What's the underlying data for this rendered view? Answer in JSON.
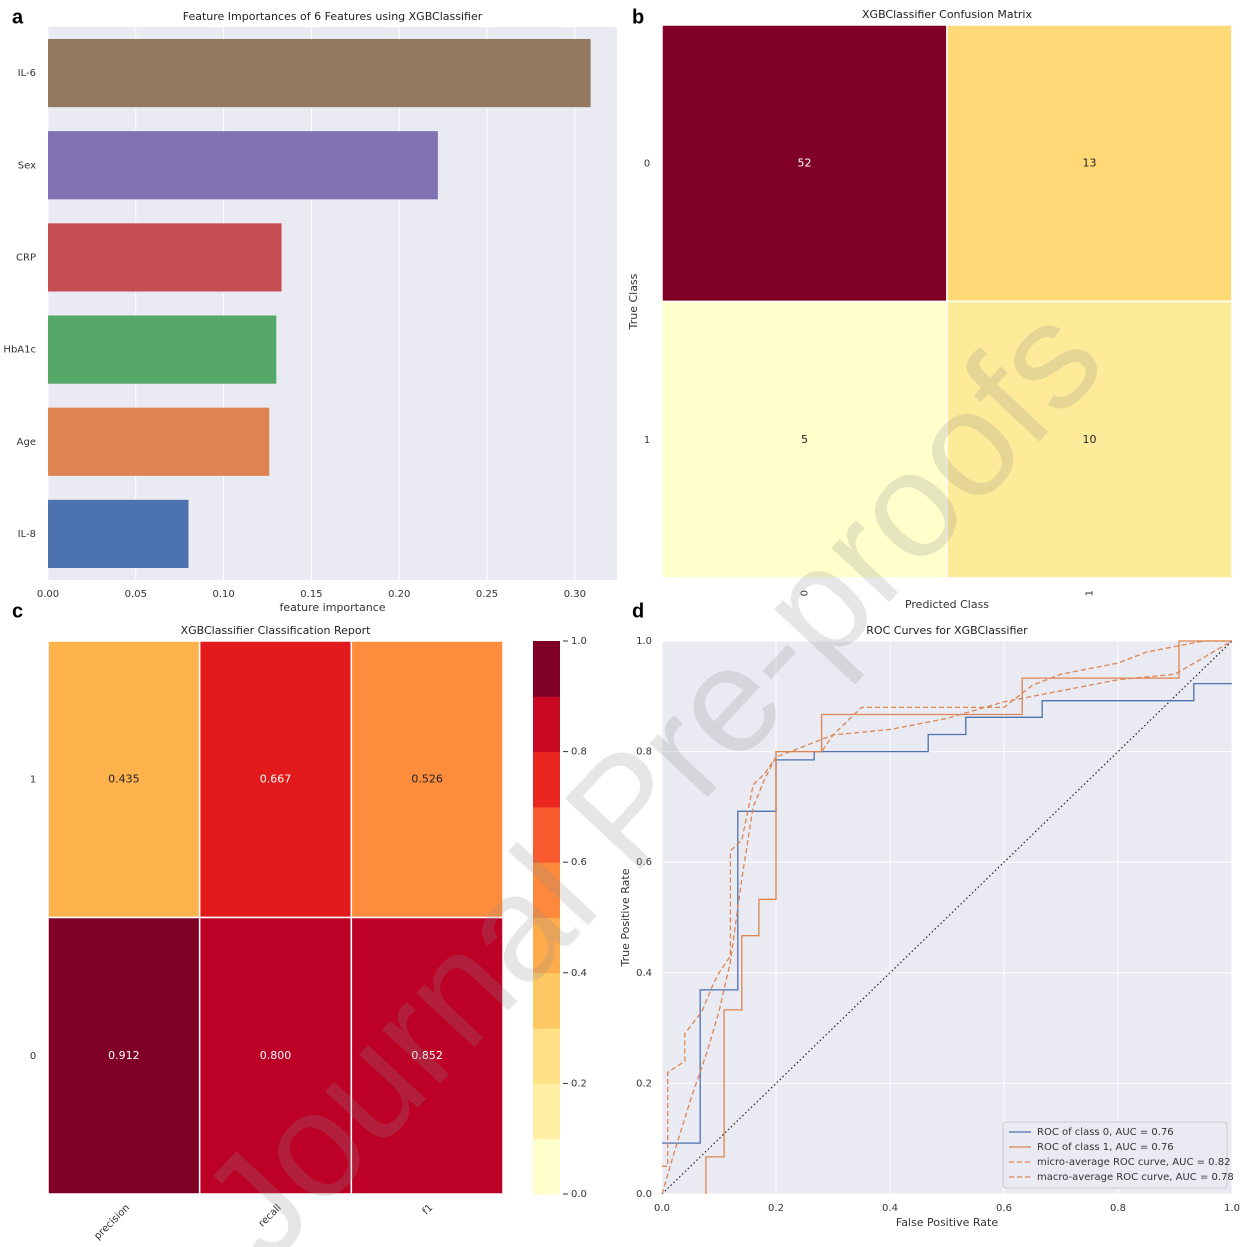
{
  "watermark": "Journal Pre-proofs",
  "chart_data": [
    {
      "type": "bar",
      "panel_label": "a",
      "title": "Feature Importances of 6 Features using XGBClassifier",
      "x_label": "feature importance",
      "categories": [
        "IL-6",
        "Sex",
        "CRP",
        "HbA1c",
        "Age",
        "IL-8"
      ],
      "values": [
        0.309,
        0.222,
        0.133,
        0.13,
        0.126,
        0.08
      ],
      "colors": [
        "#937860",
        "#8172b3",
        "#c44e52",
        "#55a868",
        "#dd8452",
        "#4c72b0"
      ],
      "xlim": [
        0,
        0.324
      ],
      "xticks": [
        {
          "value": 0,
          "label": "0.00"
        },
        0.05,
        {
          "value": 0.1,
          "label": "0.10"
        },
        0.15,
        {
          "value": 0.2,
          "label": "0.20"
        },
        0.25,
        {
          "value": 0.3,
          "label": "0.30"
        }
      ],
      "grid": true
    },
    {
      "type": "heatmap",
      "panel_label": "b",
      "title": "XGBClassifier Confusion Matrix",
      "x_label": "Predicted Class",
      "y_label": "True Class",
      "rows": [
        "0",
        "1"
      ],
      "columns": [
        "0",
        "1"
      ],
      "values": [
        [
          52,
          13
        ],
        [
          5,
          10
        ]
      ],
      "colors": [
        [
          "#800026",
          "#fed976"
        ],
        [
          "#ffffcc",
          "#feeb99"
        ]
      ],
      "xtick_rotation": 90
    },
    {
      "type": "heatmap",
      "panel_label": "c",
      "title": "XGBClassifier Classification Report",
      "rows": [
        "1",
        "0"
      ],
      "columns": [
        "precision",
        "recall",
        "f1"
      ],
      "values": [
        [
          0.435,
          0.667,
          0.526
        ],
        [
          0.912,
          0.8,
          0.852
        ]
      ],
      "value_labels": [
        [
          "0.435",
          "0.667",
          "0.526"
        ],
        [
          "0.912",
          "0.800",
          "0.852"
        ]
      ],
      "colors": [
        [
          "#feb24c",
          "#e31a1c",
          "#fd8d3c"
        ],
        [
          "#800026",
          "#bd0026",
          "#bd0026"
        ]
      ],
      "xtick_rotation": 45,
      "colorbar": {
        "lim": [
          0,
          1
        ],
        "ticks": [
          {
            "value": 0,
            "label": "0.0"
          },
          0.2,
          0.4,
          0.6,
          0.8,
          {
            "value": 1,
            "label": "1.0"
          }
        ],
        "colors": [
          "#ffffcc",
          "#ffefa5",
          "#fee087",
          "#fec965",
          "#feab4b",
          "#fd893c",
          "#fa5b2e",
          "#e9261f",
          "#c90822",
          "#800026"
        ]
      }
    },
    {
      "type": "line",
      "panel_label": "d",
      "title": "ROC Curves for XGBClassifier",
      "x_label": "False Positive Rate",
      "y_label": "True Positive Rate",
      "xlim": [
        0,
        1
      ],
      "ylim": [
        0,
        1
      ],
      "xticks": [
        {
          "value": 0,
          "label": "0.0"
        },
        0.2,
        0.4,
        0.6,
        0.8,
        {
          "value": 1,
          "label": "1.0"
        }
      ],
      "yticks": [
        {
          "value": 0,
          "label": "0.0"
        },
        0.2,
        0.4,
        0.6,
        0.8,
        {
          "value": 1,
          "label": "1.0"
        }
      ],
      "grid": true,
      "diagonal": true,
      "legend": "lower right",
      "series": [
        {
          "name": "ROC of class 0, AUC = 0.76",
          "color": "#4c72b0",
          "linestyle": "solid",
          "x": [
            0,
            0.067,
            0.067,
            0.133,
            0.133,
            0.2,
            0.2,
            0.267,
            0.267,
            0.467,
            0.467,
            0.533,
            0.533,
            0.667,
            0.667,
            0.933,
            0.933,
            1.0
          ],
          "values": [
            0.092,
            0.092,
            0.369,
            0.369,
            0.692,
            0.692,
            0.785,
            0.785,
            0.8,
            0.8,
            0.831,
            0.831,
            0.862,
            0.862,
            0.892,
            0.892,
            0.923,
            0.923
          ]
        },
        {
          "name": "ROC of class 1, AUC = 0.76",
          "color": "#dd8452",
          "linestyle": "solid",
          "x": [
            0.077,
            0.077,
            0.109,
            0.109,
            0.14,
            0.14,
            0.17,
            0.17,
            0.2,
            0.2,
            0.28,
            0.28,
            0.632,
            0.632,
            0.907,
            0.907,
            1.0
          ],
          "values": [
            0,
            0.067,
            0.067,
            0.333,
            0.333,
            0.467,
            0.467,
            0.533,
            0.533,
            0.8,
            0.8,
            0.867,
            0.867,
            0.933,
            0.933,
            1.0,
            1.0
          ]
        },
        {
          "name": "micro-average ROC curve, AUC = 0.82",
          "color": "#dd8452",
          "linestyle": "dashed",
          "x": [
            0,
            0.01,
            0.01,
            0.04,
            0.04,
            0.07,
            0.09,
            0.1,
            0.12,
            0.12,
            0.14,
            0.16,
            0.18,
            0.2,
            0.2,
            0.28,
            0.3,
            0.35,
            0.6,
            0.65,
            0.7,
            0.75,
            0.8,
            0.85,
            0.9,
            0.95,
            1.0
          ],
          "values": [
            0.05,
            0.05,
            0.22,
            0.24,
            0.29,
            0.33,
            0.38,
            0.4,
            0.43,
            0.62,
            0.64,
            0.74,
            0.76,
            0.79,
            0.8,
            0.8,
            0.83,
            0.88,
            0.88,
            0.92,
            0.94,
            0.95,
            0.96,
            0.98,
            0.99,
            1.0,
            1.0
          ]
        },
        {
          "name": "macro-average ROC curve, AUC = 0.78",
          "color": "#dd8452",
          "linestyle": "dashed",
          "x": [
            0,
            0.02,
            0.05,
            0.08,
            0.1,
            0.12,
            0.14,
            0.16,
            0.18,
            0.2,
            0.25,
            0.3,
            0.4,
            0.5,
            0.6,
            0.7,
            0.8,
            0.9,
            1.0
          ],
          "values": [
            0,
            0.07,
            0.17,
            0.26,
            0.33,
            0.42,
            0.57,
            0.7,
            0.75,
            0.79,
            0.81,
            0.83,
            0.84,
            0.86,
            0.89,
            0.91,
            0.93,
            0.94,
            1.0
          ]
        }
      ]
    }
  ]
}
